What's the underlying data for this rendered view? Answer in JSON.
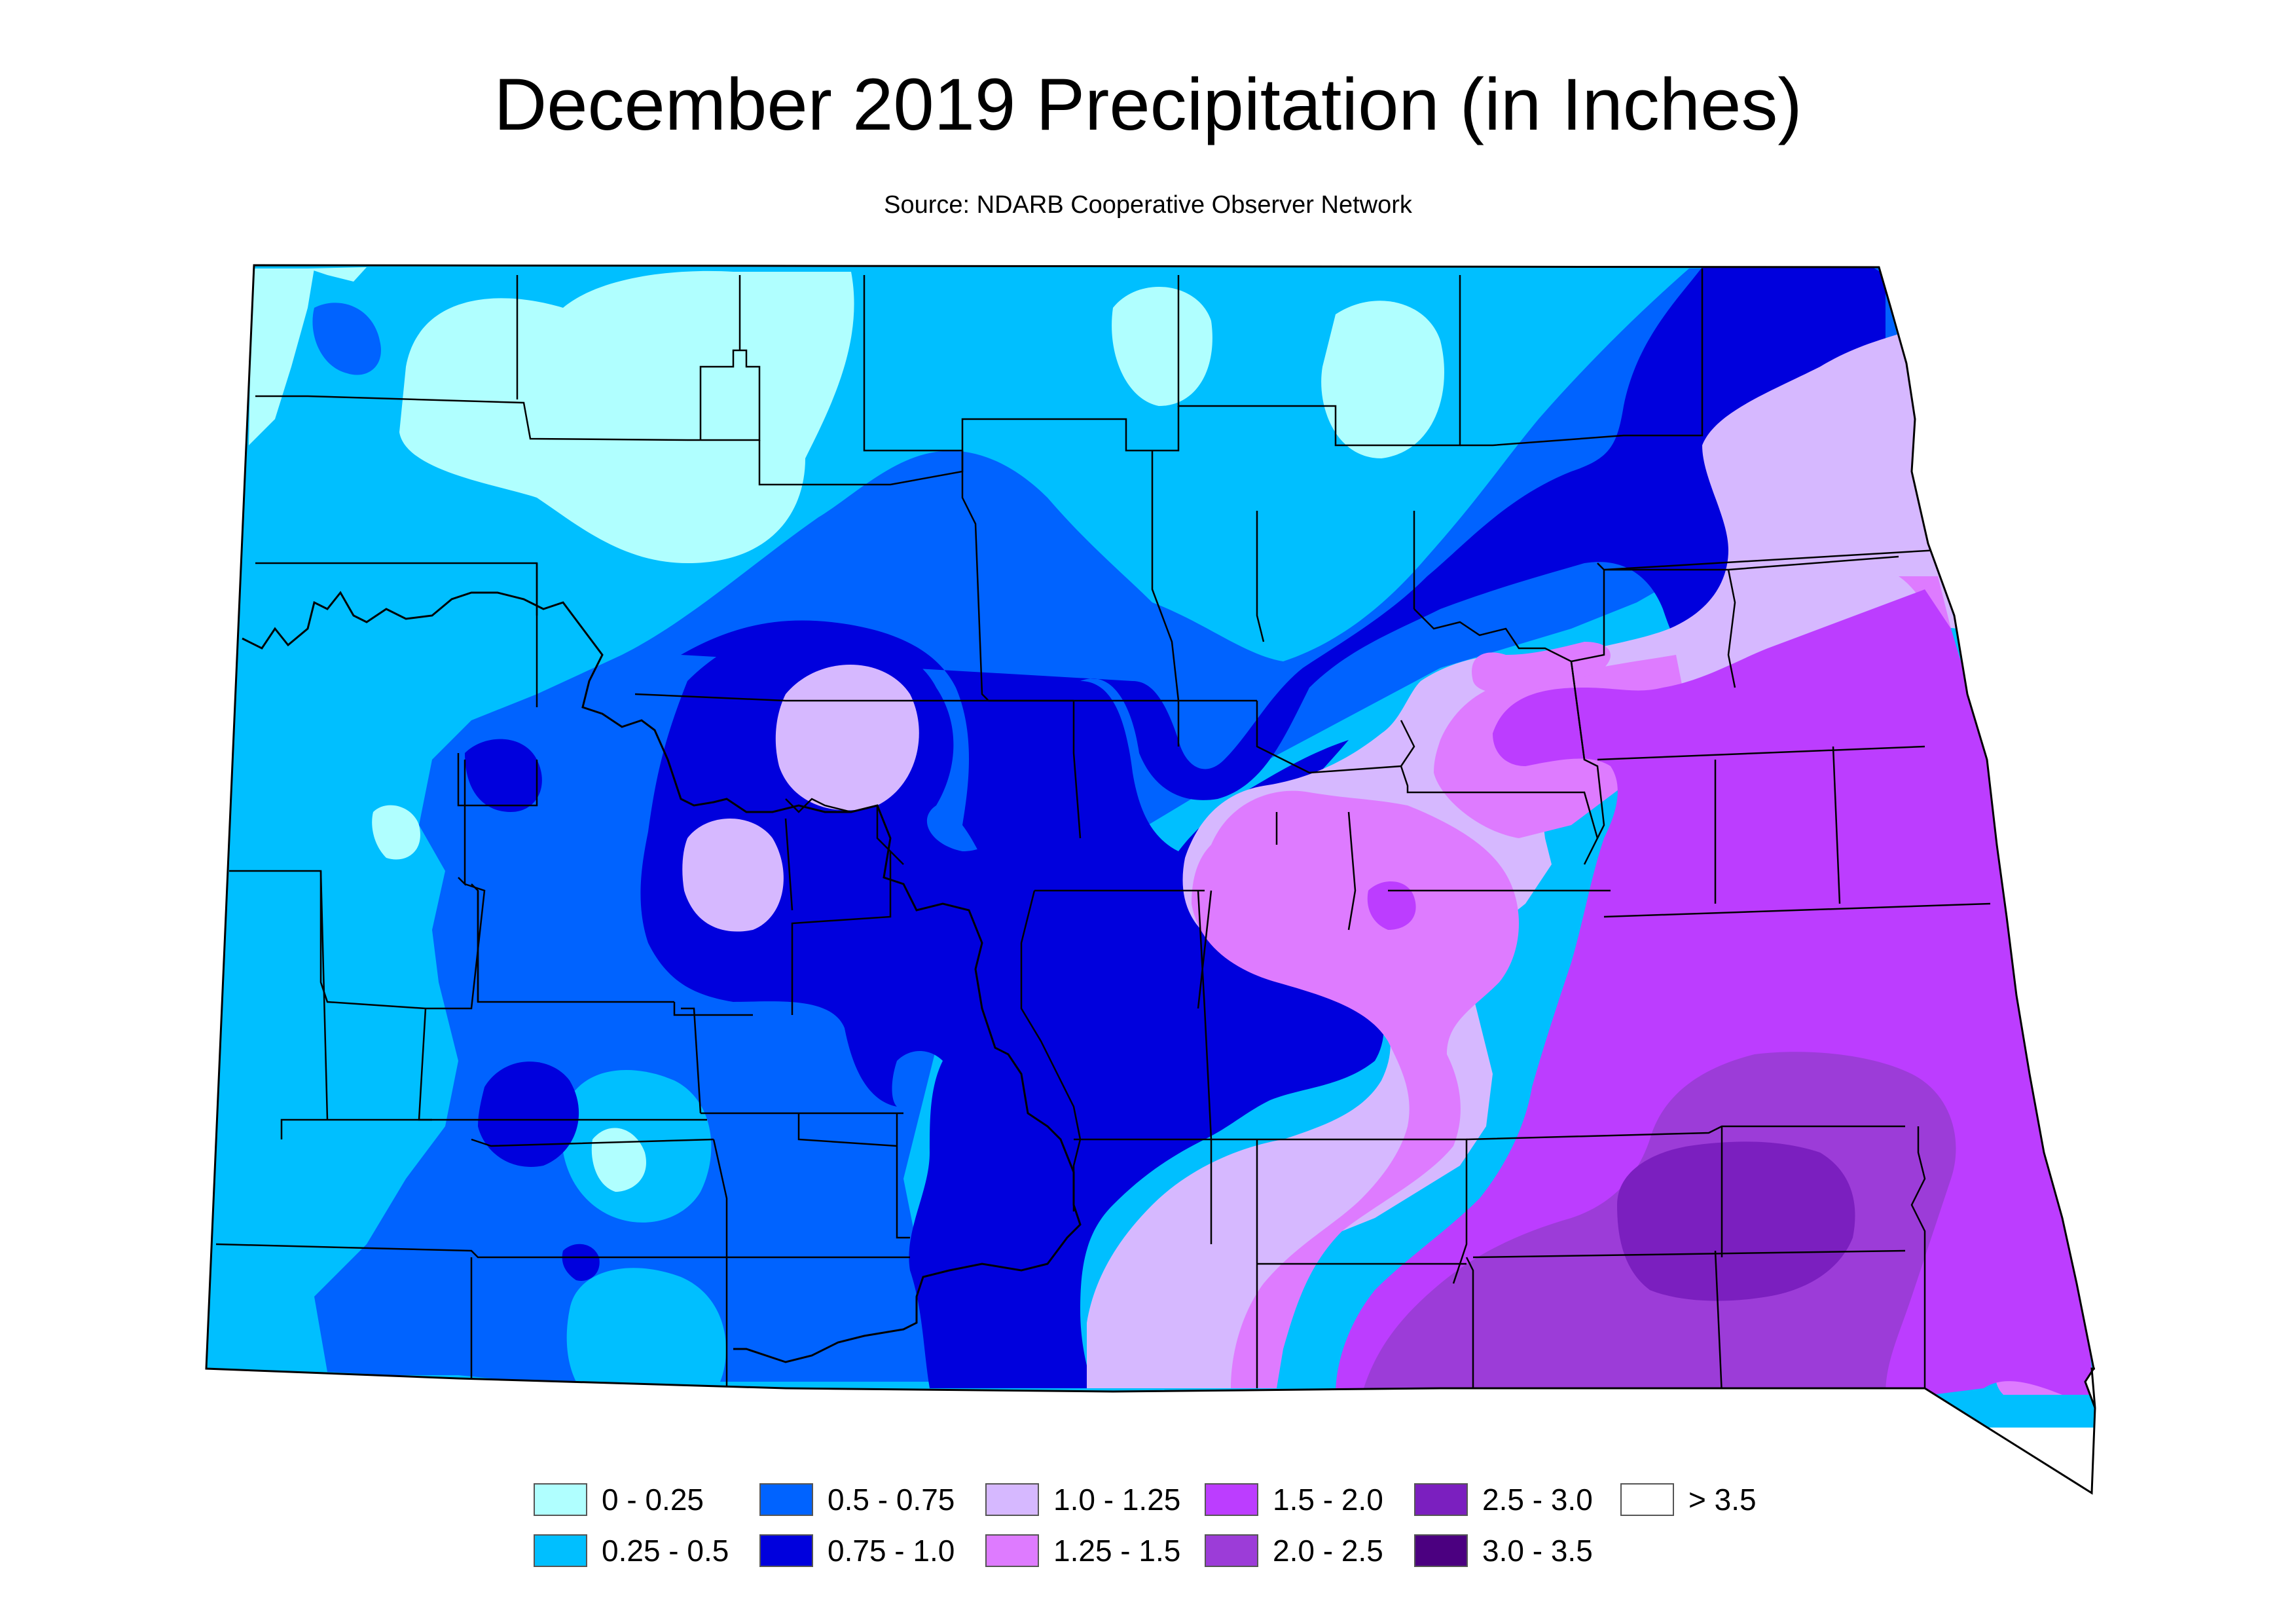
{
  "title": "December 2019 Precipitation (in Inches)",
  "subtitle": "Source: NDARB Cooperative Observer Network",
  "legend": [
    {
      "label": "0 - 0.25",
      "color": "#B0FFFF"
    },
    {
      "label": "0.25 - 0.5",
      "color": "#00BFFF"
    },
    {
      "label": "0.5 - 0.75",
      "color": "#0063FF"
    },
    {
      "label": "0.75 - 1.0",
      "color": "#0000DD"
    },
    {
      "label": "1.0 - 1.25",
      "color": "#D6B8FF"
    },
    {
      "label": "1.25 - 1.5",
      "color": "#DE7BFF"
    },
    {
      "label": "1.5 - 2.0",
      "color": "#BC3DFF"
    },
    {
      "label": "2.0 - 2.5",
      "color": "#9C3CD8"
    },
    {
      "label": "2.5 - 3.0",
      "color": "#7B1FBF"
    },
    {
      "label": "3.0 - 3.5",
      "color": "#4B0080"
    },
    {
      "label": "> 3.5",
      "color": "#FFFFFF"
    }
  ]
}
